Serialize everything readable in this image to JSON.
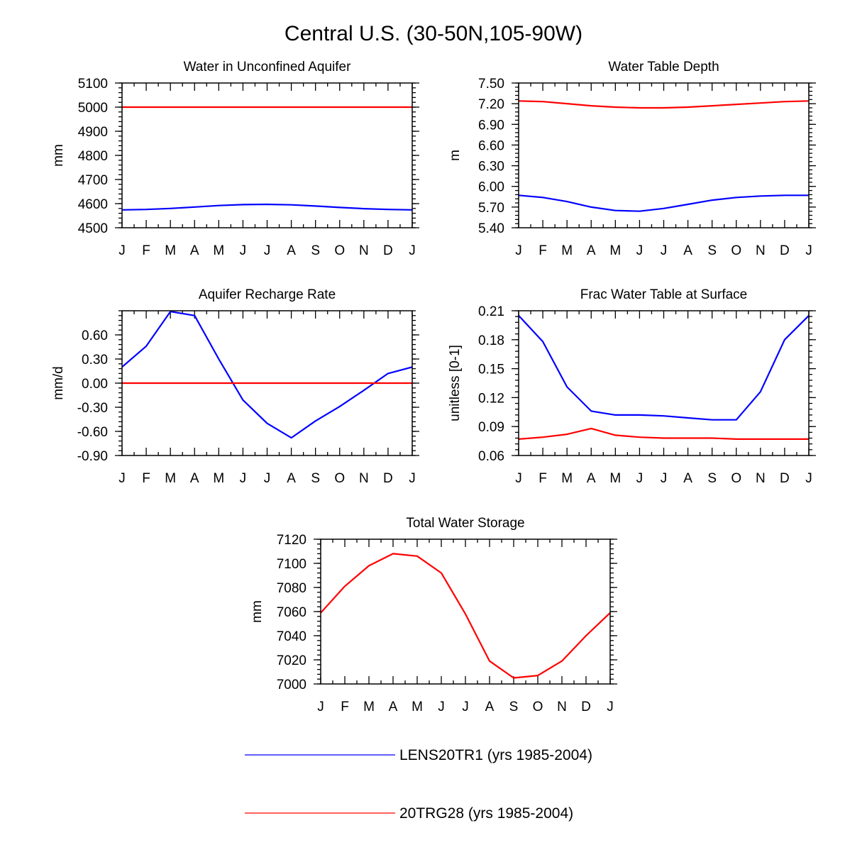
{
  "title": "Central U.S. (30-50N,105-90W)",
  "legend": [
    {
      "label": "LENS20TR1 (yrs 1985-2004)",
      "color": "#0000ff"
    },
    {
      "label": "20TRG28 (yrs 1985-2004)",
      "color": "#ff0000"
    }
  ],
  "chart_data": [
    {
      "type": "line",
      "title": "Water in Unconfined Aquifer",
      "ylabel": "mm",
      "xlabel": "",
      "categories": [
        "J",
        "F",
        "M",
        "A",
        "M",
        "J",
        "J",
        "A",
        "S",
        "O",
        "N",
        "D",
        "J"
      ],
      "ylim": [
        4500,
        5100
      ],
      "yticks": [
        4500,
        4600,
        4700,
        4800,
        4900,
        5000,
        5100
      ],
      "ytick_labels": [
        "4500",
        "4600",
        "4700",
        "4800",
        "4900",
        "5000",
        "5100"
      ],
      "series": [
        {
          "name": "LENS20TR1 (yrs 1985-2004)",
          "color": "#0000ff",
          "values": [
            4574,
            4576,
            4580,
            4586,
            4592,
            4596,
            4597,
            4595,
            4590,
            4584,
            4579,
            4576,
            4574
          ]
        },
        {
          "name": "20TRG28 (yrs 1985-2004)",
          "color": "#ff0000",
          "values": [
            5000,
            5000,
            5000,
            5000,
            5000,
            5000,
            5000,
            5000,
            5000,
            5000,
            5000,
            5000,
            5000
          ]
        }
      ]
    },
    {
      "type": "line",
      "title": "Water Table Depth",
      "ylabel": "m",
      "xlabel": "",
      "categories": [
        "J",
        "F",
        "M",
        "A",
        "M",
        "J",
        "J",
        "A",
        "S",
        "O",
        "N",
        "D",
        "J"
      ],
      "ylim": [
        5.4,
        7.5
      ],
      "yticks": [
        5.4,
        5.7,
        6.0,
        6.3,
        6.6,
        6.9,
        7.2,
        7.5
      ],
      "ytick_labels": [
        "5.40",
        "5.70",
        "6.00",
        "6.30",
        "6.60",
        "6.90",
        "7.20",
        "7.50"
      ],
      "series": [
        {
          "name": "LENS20TR1 (yrs 1985-2004)",
          "color": "#0000ff",
          "values": [
            5.87,
            5.84,
            5.78,
            5.7,
            5.65,
            5.64,
            5.68,
            5.74,
            5.8,
            5.84,
            5.86,
            5.87,
            5.87
          ]
        },
        {
          "name": "20TRG28 (yrs 1985-2004)",
          "color": "#ff0000",
          "values": [
            7.24,
            7.23,
            7.2,
            7.17,
            7.15,
            7.14,
            7.14,
            7.15,
            7.17,
            7.19,
            7.21,
            7.23,
            7.24
          ]
        }
      ]
    },
    {
      "type": "line",
      "title": "Aquifer Recharge Rate",
      "ylabel": "mm/d",
      "xlabel": "",
      "categories": [
        "J",
        "F",
        "M",
        "A",
        "M",
        "J",
        "J",
        "A",
        "S",
        "O",
        "N",
        "D",
        "J"
      ],
      "ylim": [
        -0.9,
        0.9
      ],
      "yticks": [
        -0.9,
        -0.6,
        -0.3,
        0.0,
        0.3,
        0.6
      ],
      "ytick_labels": [
        "-0.90",
        "-0.60",
        "-0.30",
        "0.00",
        "0.30",
        "0.60"
      ],
      "series": [
        {
          "name": "LENS20TR1 (yrs 1985-2004)",
          "color": "#0000ff",
          "values": [
            0.2,
            0.46,
            0.89,
            0.84,
            0.3,
            -0.21,
            -0.5,
            -0.68,
            -0.47,
            -0.29,
            -0.09,
            0.12,
            0.2
          ]
        },
        {
          "name": "20TRG28 (yrs 1985-2004)",
          "color": "#ff0000",
          "values": [
            0,
            0,
            0,
            0,
            0,
            0,
            0,
            0,
            0,
            0,
            0,
            0,
            0
          ]
        }
      ]
    },
    {
      "type": "line",
      "title": "Frac Water Table at Surface",
      "ylabel": "unitless [0-1]",
      "xlabel": "",
      "categories": [
        "J",
        "F",
        "M",
        "A",
        "M",
        "J",
        "J",
        "A",
        "S",
        "O",
        "N",
        "D",
        "J"
      ],
      "ylim": [
        0.06,
        0.21
      ],
      "yticks": [
        0.06,
        0.09,
        0.12,
        0.15,
        0.18,
        0.21
      ],
      "ytick_labels": [
        "0.06",
        "0.09",
        "0.12",
        "0.15",
        "0.18",
        "0.21"
      ],
      "series": [
        {
          "name": "LENS20TR1 (yrs 1985-2004)",
          "color": "#0000ff",
          "values": [
            0.205,
            0.178,
            0.131,
            0.106,
            0.102,
            0.102,
            0.101,
            0.099,
            0.097,
            0.097,
            0.126,
            0.18,
            0.205
          ]
        },
        {
          "name": "20TRG28 (yrs 1985-2004)",
          "color": "#ff0000",
          "values": [
            0.077,
            0.079,
            0.082,
            0.088,
            0.081,
            0.079,
            0.078,
            0.078,
            0.078,
            0.077,
            0.077,
            0.077,
            0.077
          ]
        }
      ]
    },
    {
      "type": "line",
      "title": "Total Water Storage",
      "ylabel": "mm",
      "xlabel": "",
      "categories": [
        "J",
        "F",
        "M",
        "A",
        "M",
        "J",
        "J",
        "A",
        "S",
        "O",
        "N",
        "D",
        "J"
      ],
      "ylim": [
        7000,
        7120
      ],
      "yticks": [
        7000,
        7020,
        7040,
        7060,
        7080,
        7100,
        7120
      ],
      "ytick_labels": [
        "7000",
        "7020",
        "7040",
        "7060",
        "7080",
        "7100",
        "7120"
      ],
      "series": [
        {
          "name": "20TRG28 (yrs 1985-2004)",
          "color": "#ff0000",
          "values": [
            7059,
            7081,
            7098,
            7108,
            7106,
            7092,
            7058,
            7019,
            7005,
            7007,
            7019,
            7040,
            7059
          ]
        }
      ]
    }
  ]
}
